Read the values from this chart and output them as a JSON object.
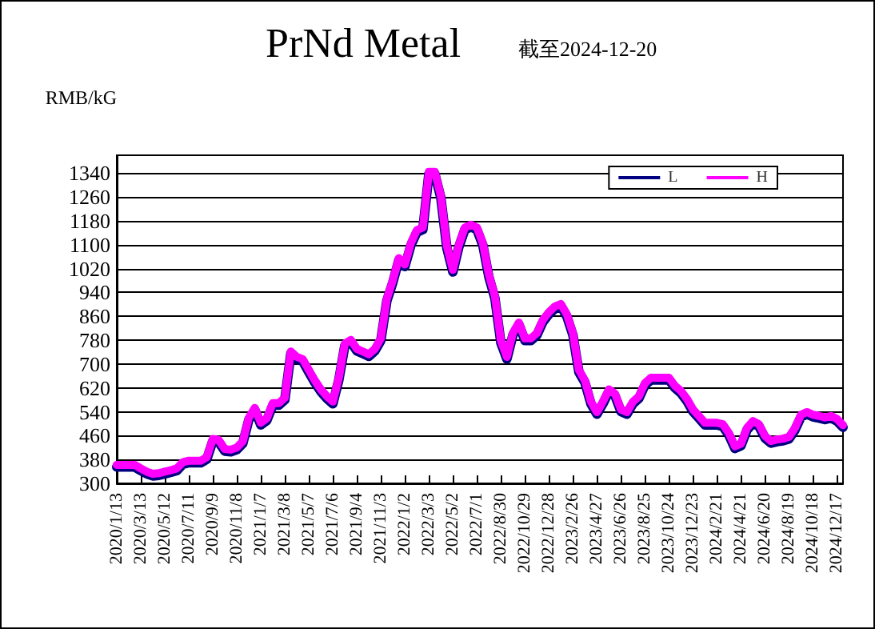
{
  "chart_data": {
    "type": "line",
    "title": "PrNd Metal",
    "subtitle": "截至2024-12-20",
    "ylabel": "RMB/kG",
    "categories": [
      "2020/1/13",
      null,
      null,
      null,
      "2020/3/13",
      null,
      null,
      null,
      "2020/5/12",
      null,
      null,
      null,
      "2020/7/11",
      null,
      null,
      null,
      "2020/9/9",
      null,
      null,
      null,
      "2020/11/8",
      null,
      null,
      null,
      "2021/1/7",
      null,
      null,
      null,
      "2021/3/8",
      null,
      null,
      null,
      "2021/5/7",
      null,
      null,
      null,
      "2021/7/6",
      null,
      null,
      null,
      "2021/9/4",
      null,
      null,
      null,
      "2021/11/3",
      null,
      null,
      null,
      "2022/1/2",
      null,
      null,
      null,
      "2022/3/3",
      null,
      null,
      null,
      "2022/5/2",
      null,
      null,
      null,
      "2022/7/1",
      null,
      null,
      null,
      "2022/8/30",
      null,
      null,
      null,
      "2022/10/29",
      null,
      null,
      null,
      "2022/12/28",
      null,
      null,
      null,
      "2023/2/26",
      null,
      null,
      null,
      "2023/4/27",
      null,
      null,
      null,
      "2023/6/26",
      null,
      null,
      null,
      "2023/8/25",
      null,
      null,
      null,
      "2023/10/24",
      null,
      null,
      null,
      "2023/12/23",
      null,
      null,
      null,
      "2024/2/21",
      null,
      null,
      null,
      "2024/4/21",
      null,
      null,
      null,
      "2024/6/20",
      null,
      null,
      null,
      "2024/8/19",
      null,
      null,
      null,
      "2024/10/18",
      null,
      null,
      null,
      "2024/12/17",
      null
    ],
    "series": [
      {
        "name": "L",
        "color": "#000080",
        "values": [
          355,
          355,
          355,
          355,
          343,
          332,
          325,
          327,
          332,
          337,
          343,
          364,
          369,
          369,
          369,
          381,
          442,
          438,
          408,
          406,
          413,
          434,
          513,
          546,
          496,
          511,
          562,
          562,
          580,
          735,
          717,
          709,
          673,
          638,
          608,
          585,
          567,
          647,
          762,
          774,
          744,
          735,
          726,
          744,
          779,
          912,
          974,
          1048,
          1027,
          1098,
          1142,
          1151,
          1337,
          1337,
          1257,
          1089,
          1009,
          1093,
          1151,
          1160,
          1151,
          1098,
          992,
          921,
          771,
          717,
          797,
          832,
          779,
          779,
          797,
          841,
          867,
          886,
          894,
          859,
          797,
          673,
          638,
          567,
          532,
          567,
          608,
          594,
          541,
          532,
          567,
          585,
          629,
          647,
          647,
          647,
          647,
          620,
          603,
          576,
          541,
          519,
          496,
          496,
          496,
          491,
          461,
          417,
          426,
          479,
          502,
          491,
          452,
          435,
          440,
          443,
          449,
          479,
          523,
          532,
          523,
          519,
          514,
          519,
          509,
          488
        ]
      },
      {
        "name": "H",
        "color": "#ff00ff",
        "values": [
          362,
          362,
          362,
          362,
          350,
          339,
          332,
          334,
          339,
          344,
          350,
          371,
          376,
          376,
          376,
          388,
          449,
          445,
          415,
          413,
          420,
          441,
          520,
          553,
          503,
          518,
          569,
          569,
          587,
          742,
          724,
          716,
          680,
          645,
          615,
          592,
          574,
          654,
          769,
          781,
          751,
          742,
          733,
          751,
          786,
          919,
          981,
          1055,
          1034,
          1105,
          1149,
          1158,
          1344,
          1344,
          1264,
          1096,
          1016,
          1100,
          1158,
          1167,
          1158,
          1105,
          999,
          928,
          778,
          724,
          804,
          839,
          786,
          786,
          804,
          848,
          874,
          893,
          901,
          866,
          804,
          680,
          645,
          574,
          539,
          574,
          615,
          601,
          548,
          539,
          574,
          592,
          636,
          654,
          654,
          654,
          654,
          627,
          610,
          583,
          548,
          526,
          503,
          503,
          503,
          498,
          468,
          424,
          433,
          486,
          509,
          498,
          459,
          442,
          447,
          450,
          456,
          486,
          530,
          539,
          530,
          526,
          521,
          526,
          516,
          495
        ]
      }
    ],
    "ylim": [
      300,
      1400
    ],
    "yticks": [
      300,
      380,
      460,
      540,
      620,
      700,
      780,
      860,
      940,
      1020,
      1100,
      1180,
      1260,
      1340
    ],
    "grid": "y",
    "legend": "top right",
    "marker": "none",
    "line_style": "solid"
  }
}
